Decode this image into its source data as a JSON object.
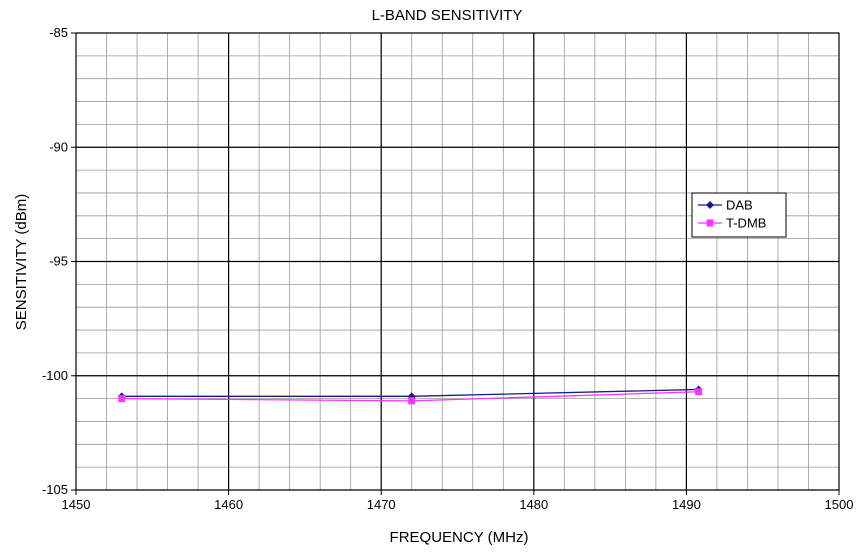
{
  "chart_data": {
    "type": "line",
    "title": "L-BAND SENSITIVITY",
    "xlabel": "FREQUENCY (MHz)",
    "ylabel": "SENSITIVITY (dBm)",
    "xlim": [
      1450,
      1500
    ],
    "ylim": [
      -105,
      -85
    ],
    "xticks": [
      1450,
      1460,
      1470,
      1480,
      1490,
      1500
    ],
    "yticks": [
      -105,
      -100,
      -95,
      -90,
      -85
    ],
    "x_minor_step": 2,
    "y_minor_step": 1,
    "grid": true,
    "legend_position": "right",
    "series": [
      {
        "name": "DAB",
        "color": "#1a1a8c",
        "marker": "diamond",
        "points": [
          [
            1453,
            -100.9
          ],
          [
            1472,
            -100.9
          ],
          [
            1490.8,
            -100.6
          ]
        ]
      },
      {
        "name": "T-DMB",
        "color": "#ff33ff",
        "marker": "square",
        "points": [
          [
            1453,
            -101.0
          ],
          [
            1472,
            -101.1
          ],
          [
            1490.8,
            -100.7
          ]
        ]
      }
    ]
  }
}
